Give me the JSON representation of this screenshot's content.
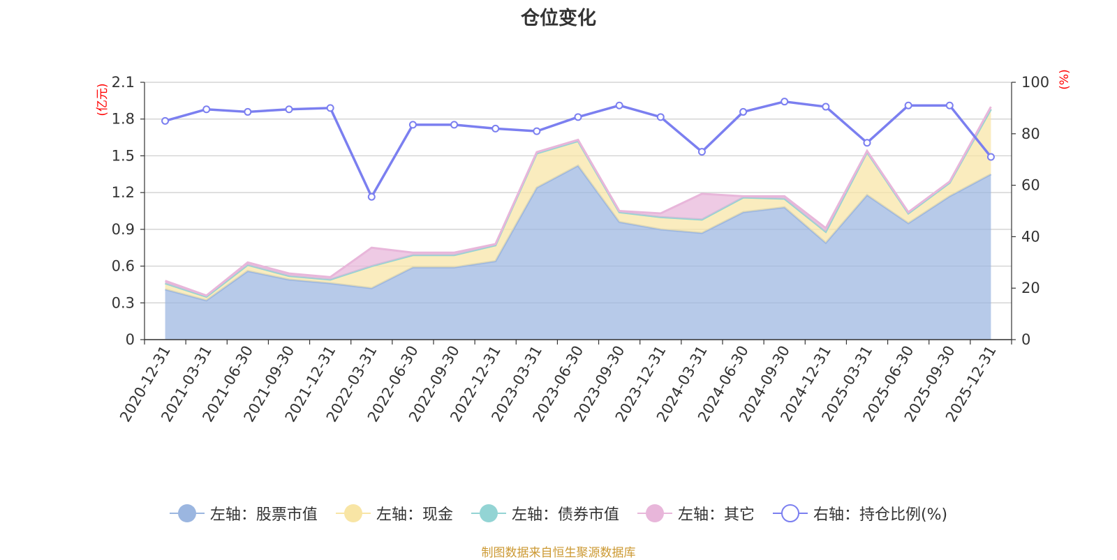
{
  "title": "仓位变化",
  "source": "制图数据来自恒生聚源数据库",
  "chart_data": {
    "type": "area",
    "title": "仓位变化",
    "categories": [
      "2020-12-31",
      "2021-03-31",
      "2021-06-30",
      "2021-09-30",
      "2021-12-31",
      "2022-03-31",
      "2022-06-30",
      "2022-09-30",
      "2022-12-31",
      "2023-03-31",
      "2023-06-30",
      "2023-09-30",
      "2023-12-31",
      "2024-03-31",
      "2024-06-30",
      "2024-09-30",
      "2024-12-31",
      "2025-03-31",
      "2025-06-30",
      "2025-09-30",
      "2025-12-31"
    ],
    "left_axis": {
      "unit": "(亿元)",
      "ylim": [
        0,
        2.1
      ],
      "ticks": [
        "0",
        "0.3",
        "0.6",
        "0.9",
        "1.2",
        "1.5",
        "1.8",
        "2.1"
      ]
    },
    "right_axis": {
      "unit": "(%)",
      "ylim": [
        0,
        100
      ],
      "ticks": [
        "0",
        "20",
        "40",
        "60",
        "80",
        "100"
      ]
    },
    "grid": true,
    "legend_position": "bottom",
    "series": [
      {
        "name": "左轴：股票市值",
        "axis": "left",
        "stack": true,
        "color": "#9bb6e0",
        "values": [
          0.41,
          0.32,
          0.56,
          0.49,
          0.46,
          0.42,
          0.59,
          0.59,
          0.64,
          1.24,
          1.42,
          0.96,
          0.9,
          0.87,
          1.04,
          1.08,
          0.79,
          1.18,
          0.95,
          1.17,
          1.35
        ]
      },
      {
        "name": "左轴：现金",
        "axis": "left",
        "stack": true,
        "color": "#f8e5a5",
        "values": [
          0.05,
          0.03,
          0.05,
          0.03,
          0.03,
          0.18,
          0.1,
          0.1,
          0.13,
          0.28,
          0.2,
          0.08,
          0.1,
          0.11,
          0.12,
          0.07,
          0.09,
          0.35,
          0.08,
          0.11,
          0.53
        ]
      },
      {
        "name": "左轴：债券市值",
        "axis": "left",
        "stack": true,
        "color": "#93d4d4",
        "values": [
          0,
          0,
          0,
          0,
          0,
          0,
          0,
          0,
          0,
          0,
          0,
          0,
          0,
          0,
          0,
          0,
          0,
          0,
          0,
          0,
          0
        ]
      },
      {
        "name": "左轴：其它",
        "axis": "left",
        "stack": true,
        "color": "#e8b6da",
        "values": [
          0.02,
          0.01,
          0.02,
          0.02,
          0.02,
          0.15,
          0.02,
          0.02,
          0.01,
          0.01,
          0.01,
          0.01,
          0.03,
          0.21,
          0.01,
          0.02,
          0.03,
          0.01,
          0.01,
          0.01,
          0.02
        ]
      },
      {
        "name": "右轴：持仓比例(%)",
        "axis": "right",
        "stack": false,
        "color": "#7b7ff0",
        "values": [
          85,
          89.5,
          88.5,
          89.5,
          90,
          55.5,
          83.5,
          83.5,
          82,
          81,
          86.5,
          91,
          86.5,
          73,
          88.5,
          92.5,
          90.5,
          76.5,
          91,
          91,
          71
        ]
      }
    ]
  },
  "colors": {
    "left_unit": "#ff0000",
    "right_unit": "#ff0000",
    "axis": "#333333",
    "grid": "#cccccc"
  }
}
